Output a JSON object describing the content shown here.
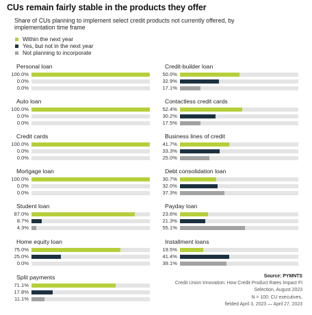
{
  "header": {
    "title": "CUs remain fairly stable in the products they offer",
    "subtitle": "Share of CUs planning to implement select credit products not currently offered, by implementation time frame"
  },
  "legend": [
    {
      "label": "Within the next year",
      "color": "#b5cf3a"
    },
    {
      "label": "Yes, but not in the next year",
      "color": "#1c3140"
    },
    {
      "label": "Not planning to incorporate",
      "color": "#a3a3a3"
    }
  ],
  "chart_data": {
    "type": "bar",
    "orientation": "horizontal",
    "series_names": [
      "Within the next year",
      "Yes, but not in the next year",
      "Not planning to incorporate"
    ],
    "xlim": [
      0,
      100
    ],
    "charts": [
      {
        "title": "Personal loan",
        "values": [
          100.0,
          0.0,
          0.0
        ],
        "labels": [
          "100.0%",
          "0.0%",
          "0.0%"
        ]
      },
      {
        "title": "Credit-builder loan",
        "values": [
          50.0,
          32.9,
          17.1
        ],
        "labels": [
          "50.0%",
          "32.9%",
          "17.1%"
        ]
      },
      {
        "title": "Auto loan",
        "values": [
          100.0,
          0.0,
          0.0
        ],
        "labels": [
          "100.0%",
          "0.0%",
          "0.0%"
        ]
      },
      {
        "title": "Contactless credit cards",
        "values": [
          52.4,
          30.2,
          17.5
        ],
        "labels": [
          "52.4%",
          "30.2%",
          "17.5%"
        ]
      },
      {
        "title": "Credit cards",
        "values": [
          100.0,
          0.0,
          0.0
        ],
        "labels": [
          "100.0%",
          "0.0%",
          "0.0%"
        ]
      },
      {
        "title": "Business lines of credit",
        "values": [
          41.7,
          33.3,
          25.0
        ],
        "labels": [
          "41.7%",
          "33.3%",
          "25.0%"
        ]
      },
      {
        "title": "Mortgage loan",
        "values": [
          100.0,
          0.0,
          0.0
        ],
        "labels": [
          "100.0%",
          "0.0%",
          "0.0%"
        ]
      },
      {
        "title": "Debt consolidation loan",
        "values": [
          30.7,
          32.0,
          37.3
        ],
        "labels": [
          "30.7%",
          "32.0%",
          "37.3%"
        ]
      },
      {
        "title": "Student loan",
        "values": [
          87.0,
          8.7,
          4.3
        ],
        "labels": [
          "87.0%",
          "8.7%",
          "4.3%"
        ]
      },
      {
        "title": "Payday loan",
        "values": [
          23.6,
          21.3,
          55.1
        ],
        "labels": [
          "23.6%",
          "21.3%",
          "55.1%"
        ]
      },
      {
        "title": "Home equity loan",
        "values": [
          75.0,
          25.0,
          0.0
        ],
        "labels": [
          "75.0%",
          "25.0%",
          "0.0%"
        ]
      },
      {
        "title": "Installment loans",
        "values": [
          19.5,
          41.4,
          39.1
        ],
        "labels": [
          "19.5%",
          "41.4%",
          "39.1%"
        ]
      },
      {
        "title": "Split payments",
        "values": [
          71.1,
          17.8,
          11.1
        ],
        "labels": [
          "71.1%",
          "17.8%",
          "11.1%"
        ]
      }
    ]
  },
  "source": {
    "label": "Source: PYMNTS",
    "line1": "Credit Union Innovation: How Credit Product Rates Impact FI",
    "line2": "Selection, August 2023",
    "line3": "N = 100: CU executives,",
    "line4": "fielded April 3, 2023 — April 27, 2023"
  }
}
